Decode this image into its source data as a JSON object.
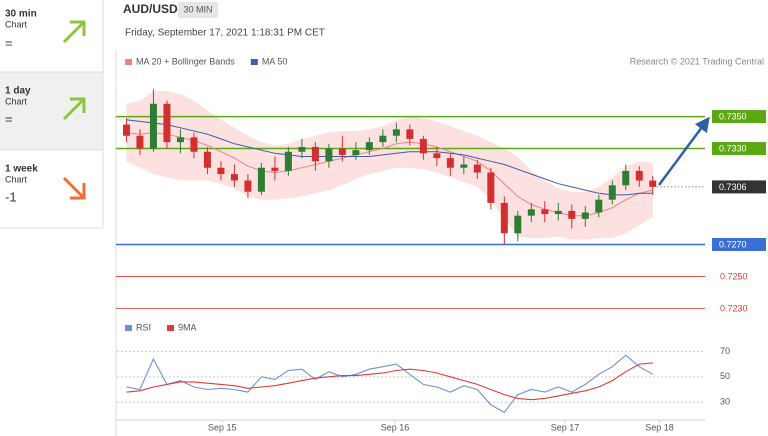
{
  "sidebar": [
    {
      "period": "30 min",
      "label": "Chart",
      "signal": "="
    },
    {
      "period": "1 day",
      "label": "Chart",
      "signal": "="
    },
    {
      "period": "1 week",
      "label": "Chart",
      "signal": "-1"
    }
  ],
  "header": {
    "symbol": "AUD/USD",
    "interval": "30 MIN",
    "timestamp": "Friday, September 17, 2021 1:18:31 PM CET",
    "credit": "Research © 2021 Trading Central"
  },
  "chart_data": [
    {
      "type": "candlestick",
      "open": [
        0.7345,
        0.7338,
        0.733,
        0.7358,
        0.7334,
        0.7337,
        0.7328,
        0.7318,
        0.7314,
        0.731,
        0.7303,
        0.7318,
        0.7316,
        0.7328,
        0.7331,
        0.7322,
        0.733,
        0.7326,
        0.7329,
        0.7334,
        0.7338,
        0.7342,
        0.7336,
        0.7327,
        0.7324,
        0.7318,
        0.732,
        0.7315,
        0.7296,
        0.7277,
        0.7288,
        0.7292,
        0.7289,
        0.7291,
        0.7286,
        0.729,
        0.7298,
        0.7307,
        0.7316,
        0.731
      ],
      "high": [
        0.7349,
        0.7342,
        0.7367,
        0.736,
        0.7342,
        0.734,
        0.7331,
        0.7322,
        0.732,
        0.7314,
        0.7321,
        0.7325,
        0.7331,
        0.7336,
        0.7334,
        0.7333,
        0.7338,
        0.7334,
        0.7337,
        0.7342,
        0.7346,
        0.7345,
        0.7338,
        0.7331,
        0.7327,
        0.7325,
        0.7323,
        0.7318,
        0.73,
        0.7291,
        0.7296,
        0.7297,
        0.7296,
        0.7295,
        0.7294,
        0.7301,
        0.731,
        0.732,
        0.7319,
        0.7313
      ],
      "low": [
        0.7334,
        0.7326,
        0.7328,
        0.733,
        0.7327,
        0.7324,
        0.7314,
        0.731,
        0.7306,
        0.7299,
        0.7301,
        0.731,
        0.7313,
        0.7324,
        0.7316,
        0.7318,
        0.7322,
        0.7323,
        0.7326,
        0.7331,
        0.7334,
        0.7332,
        0.7323,
        0.7319,
        0.7313,
        0.7314,
        0.7311,
        0.7292,
        0.727,
        0.7272,
        0.7284,
        0.7284,
        0.7285,
        0.728,
        0.7281,
        0.7287,
        0.7295,
        0.7304,
        0.7306,
        0.7301
      ],
      "close": [
        0.7338,
        0.733,
        0.7358,
        0.7334,
        0.7337,
        0.7328,
        0.7318,
        0.7314,
        0.731,
        0.7303,
        0.7318,
        0.7316,
        0.7328,
        0.7331,
        0.7322,
        0.733,
        0.7326,
        0.7329,
        0.7334,
        0.7338,
        0.7342,
        0.7336,
        0.7327,
        0.7324,
        0.7318,
        0.732,
        0.7315,
        0.7296,
        0.7277,
        0.7288,
        0.7292,
        0.7289,
        0.7291,
        0.7286,
        0.729,
        0.7298,
        0.7307,
        0.7316,
        0.731,
        0.7306
      ],
      "up_color": "#2e7d32",
      "down_color": "#d32f2f",
      "series": [
        {
          "name": "MA 20 + Bollinger Bands",
          "color": "#f08080",
          "band_color": "#fde0e0",
          "values": [
            0.734,
            0.7339,
            0.734,
            0.7339,
            0.7337,
            0.7335,
            0.7332,
            0.7328,
            0.7324,
            0.7319,
            0.7316,
            0.7315,
            0.7316,
            0.7318,
            0.732,
            0.7322,
            0.7324,
            0.7326,
            0.7328,
            0.733,
            0.7333,
            0.7334,
            0.7333,
            0.7331,
            0.7328,
            0.7325,
            0.7322,
            0.7316,
            0.7308,
            0.73,
            0.7295,
            0.7292,
            0.729,
            0.7288,
            0.7288,
            0.729,
            0.7293,
            0.7298,
            0.7302,
            0.7304
          ],
          "upper": [
            0.7358,
            0.736,
            0.7366,
            0.7366,
            0.7364,
            0.736,
            0.7354,
            0.7348,
            0.7343,
            0.7338,
            0.7334,
            0.7332,
            0.7333,
            0.7336,
            0.7338,
            0.734,
            0.7341,
            0.7341,
            0.7342,
            0.7344,
            0.7348,
            0.735,
            0.7349,
            0.7347,
            0.7344,
            0.7341,
            0.7338,
            0.7334,
            0.733,
            0.7325,
            0.7316,
            0.731,
            0.7305,
            0.7303,
            0.7303,
            0.7306,
            0.7312,
            0.7319,
            0.7322,
            0.7321
          ],
          "lower": [
            0.7322,
            0.7318,
            0.7314,
            0.7312,
            0.731,
            0.731,
            0.731,
            0.7308,
            0.7305,
            0.73,
            0.7298,
            0.7298,
            0.7299,
            0.73,
            0.7302,
            0.7304,
            0.7307,
            0.7311,
            0.7314,
            0.7316,
            0.7318,
            0.7318,
            0.7317,
            0.7315,
            0.7312,
            0.7309,
            0.7306,
            0.7298,
            0.7286,
            0.7275,
            0.7274,
            0.7274,
            0.7275,
            0.7273,
            0.7273,
            0.7274,
            0.7274,
            0.7277,
            0.7282,
            0.7287
          ]
        },
        {
          "name": "MA 50",
          "color": "#3a5ea8",
          "values": [
            0.7348,
            0.7347,
            0.7346,
            0.7345,
            0.7343,
            0.7341,
            0.7339,
            0.7336,
            0.7333,
            0.7331,
            0.7329,
            0.7327,
            0.7326,
            0.7325,
            0.7325,
            0.7325,
            0.7325,
            0.7325,
            0.7325,
            0.7326,
            0.7327,
            0.7328,
            0.7328,
            0.7328,
            0.7327,
            0.7326,
            0.7324,
            0.7322,
            0.732,
            0.7317,
            0.7314,
            0.7311,
            0.7308,
            0.7306,
            0.7304,
            0.7302,
            0.7301,
            0.7301,
            0.7302,
            0.7302
          ]
        }
      ],
      "levels": [
        {
          "value": 0.735,
          "label": "0.7350",
          "color": "#5aa913",
          "line": "solid",
          "boxed": true
        },
        {
          "value": 0.733,
          "label": "0.7330",
          "color": "#5aa913",
          "line": "solid",
          "boxed": true
        },
        {
          "value": 0.7306,
          "label": "0.7306",
          "color": "#333333",
          "line": "dotted",
          "boxed": true
        },
        {
          "value": 0.727,
          "label": "0.7270",
          "color": "#3a6fd8",
          "line": "solid",
          "boxed": true
        },
        {
          "value": 0.725,
          "label": "0.7250",
          "color": "#e53935",
          "line": "solid",
          "boxed": false
        },
        {
          "value": 0.723,
          "label": "0.7230",
          "color": "#e53935",
          "line": "solid",
          "boxed": false
        }
      ],
      "xlim": [
        -0.7,
        42.5
      ],
      "xticks": [
        {
          "value": 7.1,
          "label": "Sep 15"
        },
        {
          "value": 19.9,
          "label": "Sep 16"
        },
        {
          "value": 32.5,
          "label": "Sep 17"
        },
        {
          "value": 39.5,
          "label": "Sep 18"
        }
      ],
      "ylim": [
        0.7224,
        0.7376
      ]
    },
    {
      "type": "line",
      "series": [
        {
          "name": "RSI",
          "color": "#6f8fd8",
          "values": [
            42,
            40,
            64,
            44,
            47,
            42,
            40,
            41,
            40,
            38,
            50,
            48,
            55,
            56,
            48,
            54,
            50,
            52,
            56,
            58,
            60,
            52,
            44,
            42,
            38,
            43,
            40,
            28,
            22,
            36,
            40,
            38,
            42,
            38,
            44,
            52,
            58,
            67,
            58,
            52
          ]
        },
        {
          "name": "9MA",
          "color": "#e53935",
          "values": [
            38,
            39,
            42,
            44,
            46,
            46,
            45,
            44,
            43,
            41,
            42,
            43,
            45,
            47,
            49,
            50,
            51,
            51,
            52,
            53,
            55,
            56,
            55,
            53,
            50,
            47,
            44,
            40,
            36,
            33,
            32,
            33,
            35,
            37,
            39,
            42,
            47,
            54,
            60,
            61
          ]
        }
      ],
      "xlim": [
        -0.7,
        42.5
      ],
      "ylim": [
        16,
        79
      ],
      "yticks": [
        30,
        50,
        70
      ]
    }
  ]
}
